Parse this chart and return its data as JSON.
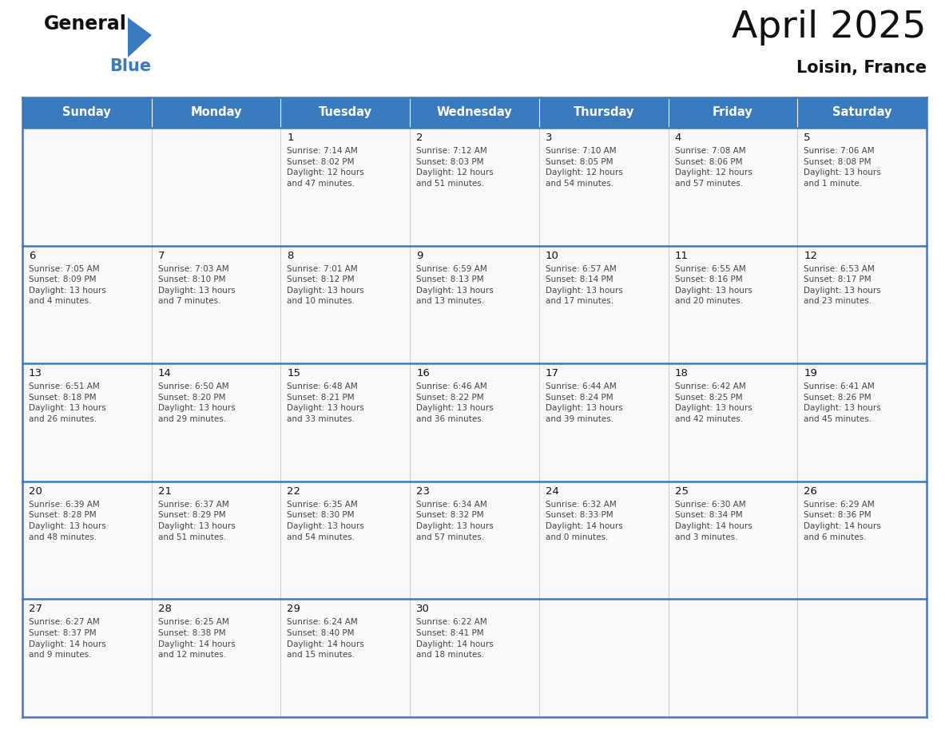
{
  "title": "April 2025",
  "subtitle": "Loisin, France",
  "days_of_week": [
    "Sunday",
    "Monday",
    "Tuesday",
    "Wednesday",
    "Thursday",
    "Friday",
    "Saturday"
  ],
  "header_bg": "#3a7abf",
  "header_text": "#ffffff",
  "cell_bg": "#f9f9f9",
  "border_color": "#3a7abf",
  "row_line_color": "#3a7abf",
  "col_line_color": "#c0c0c0",
  "day_num_color": "#111111",
  "text_color": "#444444",
  "calendar_data": [
    [
      {
        "day": null,
        "info": null
      },
      {
        "day": null,
        "info": null
      },
      {
        "day": 1,
        "info": "Sunrise: 7:14 AM\nSunset: 8:02 PM\nDaylight: 12 hours\nand 47 minutes."
      },
      {
        "day": 2,
        "info": "Sunrise: 7:12 AM\nSunset: 8:03 PM\nDaylight: 12 hours\nand 51 minutes."
      },
      {
        "day": 3,
        "info": "Sunrise: 7:10 AM\nSunset: 8:05 PM\nDaylight: 12 hours\nand 54 minutes."
      },
      {
        "day": 4,
        "info": "Sunrise: 7:08 AM\nSunset: 8:06 PM\nDaylight: 12 hours\nand 57 minutes."
      },
      {
        "day": 5,
        "info": "Sunrise: 7:06 AM\nSunset: 8:08 PM\nDaylight: 13 hours\nand 1 minute."
      }
    ],
    [
      {
        "day": 6,
        "info": "Sunrise: 7:05 AM\nSunset: 8:09 PM\nDaylight: 13 hours\nand 4 minutes."
      },
      {
        "day": 7,
        "info": "Sunrise: 7:03 AM\nSunset: 8:10 PM\nDaylight: 13 hours\nand 7 minutes."
      },
      {
        "day": 8,
        "info": "Sunrise: 7:01 AM\nSunset: 8:12 PM\nDaylight: 13 hours\nand 10 minutes."
      },
      {
        "day": 9,
        "info": "Sunrise: 6:59 AM\nSunset: 8:13 PM\nDaylight: 13 hours\nand 13 minutes."
      },
      {
        "day": 10,
        "info": "Sunrise: 6:57 AM\nSunset: 8:14 PM\nDaylight: 13 hours\nand 17 minutes."
      },
      {
        "day": 11,
        "info": "Sunrise: 6:55 AM\nSunset: 8:16 PM\nDaylight: 13 hours\nand 20 minutes."
      },
      {
        "day": 12,
        "info": "Sunrise: 6:53 AM\nSunset: 8:17 PM\nDaylight: 13 hours\nand 23 minutes."
      }
    ],
    [
      {
        "day": 13,
        "info": "Sunrise: 6:51 AM\nSunset: 8:18 PM\nDaylight: 13 hours\nand 26 minutes."
      },
      {
        "day": 14,
        "info": "Sunrise: 6:50 AM\nSunset: 8:20 PM\nDaylight: 13 hours\nand 29 minutes."
      },
      {
        "day": 15,
        "info": "Sunrise: 6:48 AM\nSunset: 8:21 PM\nDaylight: 13 hours\nand 33 minutes."
      },
      {
        "day": 16,
        "info": "Sunrise: 6:46 AM\nSunset: 8:22 PM\nDaylight: 13 hours\nand 36 minutes."
      },
      {
        "day": 17,
        "info": "Sunrise: 6:44 AM\nSunset: 8:24 PM\nDaylight: 13 hours\nand 39 minutes."
      },
      {
        "day": 18,
        "info": "Sunrise: 6:42 AM\nSunset: 8:25 PM\nDaylight: 13 hours\nand 42 minutes."
      },
      {
        "day": 19,
        "info": "Sunrise: 6:41 AM\nSunset: 8:26 PM\nDaylight: 13 hours\nand 45 minutes."
      }
    ],
    [
      {
        "day": 20,
        "info": "Sunrise: 6:39 AM\nSunset: 8:28 PM\nDaylight: 13 hours\nand 48 minutes."
      },
      {
        "day": 21,
        "info": "Sunrise: 6:37 AM\nSunset: 8:29 PM\nDaylight: 13 hours\nand 51 minutes."
      },
      {
        "day": 22,
        "info": "Sunrise: 6:35 AM\nSunset: 8:30 PM\nDaylight: 13 hours\nand 54 minutes."
      },
      {
        "day": 23,
        "info": "Sunrise: 6:34 AM\nSunset: 8:32 PM\nDaylight: 13 hours\nand 57 minutes."
      },
      {
        "day": 24,
        "info": "Sunrise: 6:32 AM\nSunset: 8:33 PM\nDaylight: 14 hours\nand 0 minutes."
      },
      {
        "day": 25,
        "info": "Sunrise: 6:30 AM\nSunset: 8:34 PM\nDaylight: 14 hours\nand 3 minutes."
      },
      {
        "day": 26,
        "info": "Sunrise: 6:29 AM\nSunset: 8:36 PM\nDaylight: 14 hours\nand 6 minutes."
      }
    ],
    [
      {
        "day": 27,
        "info": "Sunrise: 6:27 AM\nSunset: 8:37 PM\nDaylight: 14 hours\nand 9 minutes."
      },
      {
        "day": 28,
        "info": "Sunrise: 6:25 AM\nSunset: 8:38 PM\nDaylight: 14 hours\nand 12 minutes."
      },
      {
        "day": 29,
        "info": "Sunrise: 6:24 AM\nSunset: 8:40 PM\nDaylight: 14 hours\nand 15 minutes."
      },
      {
        "day": 30,
        "info": "Sunrise: 6:22 AM\nSunset: 8:41 PM\nDaylight: 14 hours\nand 18 minutes."
      },
      {
        "day": null,
        "info": null
      },
      {
        "day": null,
        "info": null
      },
      {
        "day": null,
        "info": null
      }
    ]
  ]
}
